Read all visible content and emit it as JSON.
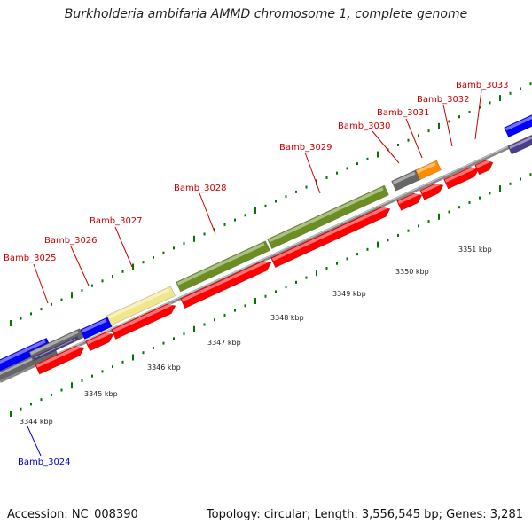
{
  "title": "Burkholderia ambifaria AMMD chromosome 1, complete genome",
  "accession": "Accession: NC_008390",
  "topology": "Topology: circular; Length: 3,556,545 bp; Genes: 3,281",
  "colors": {
    "label_red": "#cc0000",
    "label_blue": "#0000cc",
    "cds": "#ff0000",
    "gene_green": "#6b8e23",
    "gene_blue": "#0000ff",
    "gene_yellow": "#f0e68c",
    "gene_orange": "#ff8c00",
    "gene_gray": "#666666",
    "gene_purple": "#483d8b",
    "backbone": "#888888",
    "ticks": "#007700"
  },
  "scale_labels": [
    "3344 kbp",
    "3345 kbp",
    "3346 kbp",
    "3347 kbp",
    "3348 kbp",
    "3349 kbp",
    "3350 kbp",
    "3351 kbp"
  ],
  "gene_labels": [
    "Bamb_3024",
    "Bamb_3025",
    "Bamb_3026",
    "Bamb_3027",
    "Bamb_3028",
    "Bamb_3029",
    "Bamb_3030",
    "Bamb_3031",
    "Bamb_3032",
    "Bamb_3033"
  ]
}
